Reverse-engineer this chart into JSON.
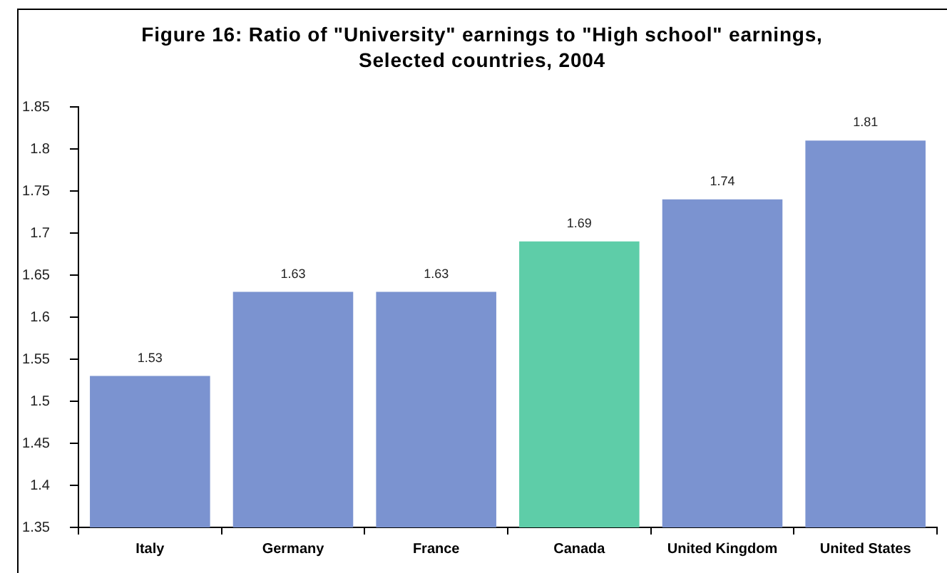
{
  "chart_data": {
    "type": "bar",
    "title": "Figure 16: Ratio of \"University\" earnings to \"High school\" earnings, Selected countries, 2004",
    "categories": [
      "Italy",
      "Germany",
      "France",
      "Canada",
      "United Kingdom",
      "United States"
    ],
    "values": [
      1.53,
      1.63,
      1.63,
      1.69,
      1.74,
      1.81
    ],
    "colors": [
      "#7b93d0",
      "#7b93d0",
      "#7b93d0",
      "#5ecda8",
      "#7b93d0",
      "#7b93d0"
    ],
    "ylim": [
      1.35,
      1.85
    ],
    "yticks": [
      1.35,
      1.4,
      1.45,
      1.5,
      1.55,
      1.6,
      1.65,
      1.7,
      1.75,
      1.8,
      1.85
    ],
    "data_labels": true
  }
}
